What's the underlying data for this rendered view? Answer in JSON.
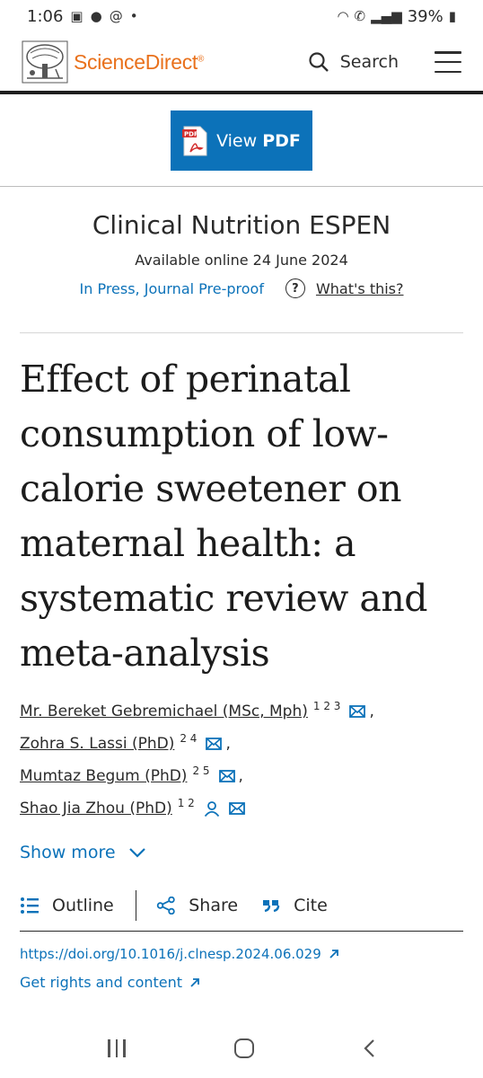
{
  "status_bar": {
    "time": "1:06",
    "battery": "39%"
  },
  "header": {
    "brand": "ScienceDirect",
    "brand_mark": "®",
    "search_label": "Search"
  },
  "pdf_button": {
    "label_prefix": "View",
    "label_bold": "PDF",
    "icon_label": "PDF"
  },
  "journal": {
    "name": "Clinical Nutrition ESPEN",
    "available": "Available online 24 June 2024",
    "status": "In Press, Journal Pre-proof",
    "whats_this": "What's this?"
  },
  "article": {
    "title": "Effect of perinatal consumption of low-calorie sweetener on maternal health: a systematic review and meta-analysis"
  },
  "authors": [
    {
      "name": "Mr. Bereket Gebremichael (MSc, Mph)",
      "affil": "1 2 3",
      "sep": ","
    },
    {
      "name": "Zohra S. Lassi (PhD)",
      "affil": "2 4",
      "sep": ","
    },
    {
      "name": "Mumtaz Begum (PhD)",
      "affil": "2 5",
      "sep": ","
    },
    {
      "name": "Shao Jia Zhou (PhD)",
      "affil": "1 2",
      "sep": ""
    }
  ],
  "show_more": "Show more",
  "toolbar": {
    "outline": "Outline",
    "share": "Share",
    "cite": "Cite"
  },
  "doi": "https://doi.org/10.1016/j.clnesp.2024.06.029",
  "rights": "Get rights and content",
  "colors": {
    "brand_orange": "#e9711c",
    "link_blue": "#0c72b9"
  }
}
